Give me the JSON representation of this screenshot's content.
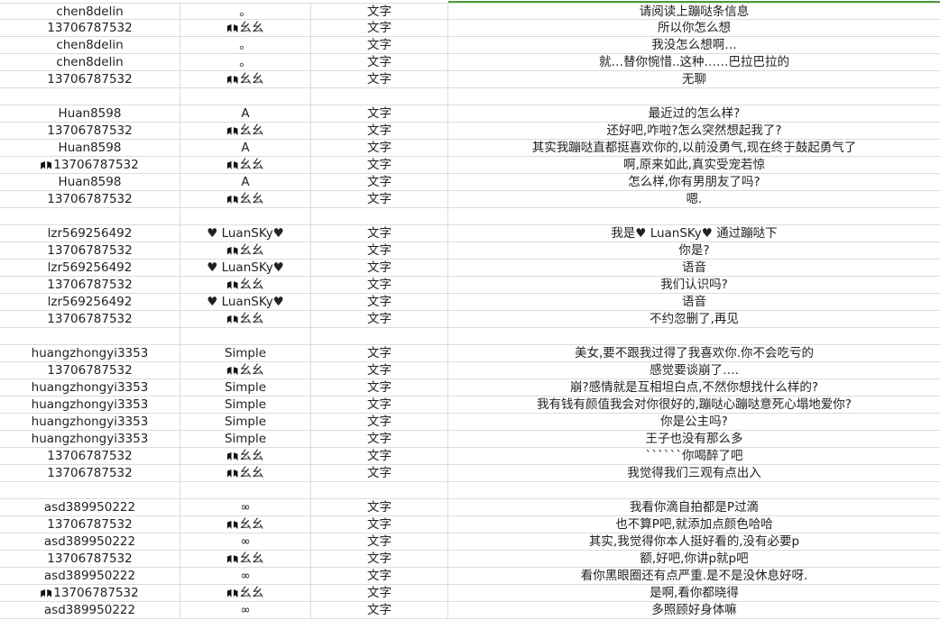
{
  "colors": {
    "selection_accent": "#4e9a3a",
    "grid": "#dcdcdc"
  },
  "glyph_icon": "emoji-glyph-icon",
  "rows": [
    {
      "sender": "chen8delin",
      "nick": "。",
      "type": "文字",
      "msg": "请阅读上蹦哒条信息"
    },
    {
      "sender": "13706787532",
      "nick": "幺幺",
      "nick_glyph": true,
      "type": "文字",
      "msg": "所以你怎么想"
    },
    {
      "sender": "chen8delin",
      "nick": "。",
      "type": "文字",
      "msg": "我没怎么想啊…"
    },
    {
      "sender": "chen8delin",
      "nick": "。",
      "type": "文字",
      "msg": "就…替你惋惜..这种……巴拉巴拉的"
    },
    {
      "sender": "13706787532",
      "nick": "幺幺",
      "nick_glyph": true,
      "type": "文字",
      "msg": "无聊"
    },
    {},
    {
      "sender": "Huan8598",
      "nick": "A",
      "type": "文字",
      "msg": "最近过的怎么样?"
    },
    {
      "sender": "13706787532",
      "nick": "幺幺",
      "nick_glyph": true,
      "type": "文字",
      "msg": "还好吧,咋啦?怎么突然想起我了?"
    },
    {
      "sender": "Huan8598",
      "nick": "A",
      "type": "文字",
      "msg": "其实我蹦哒直都挺喜欢你的,以前没勇气,现在终于鼓起勇气了"
    },
    {
      "sender": "13706787532",
      "sender_glyph": true,
      "nick": "幺幺",
      "nick_glyph": true,
      "type": "文字",
      "msg": "啊,原来如此,真实受宠若惊"
    },
    {
      "sender": "Huan8598",
      "nick": "A",
      "type": "文字",
      "msg": "怎么样,你有男朋友了吗?"
    },
    {
      "sender": "13706787532",
      "nick": "幺幺",
      "nick_glyph": true,
      "type": "文字",
      "msg": "嗯."
    },
    {},
    {
      "sender": "lzr569256492",
      "nick": "♥ LuanSKy♥",
      "type": "文字",
      "msg": "我是♥ LuanSKy♥ 通过蹦哒下"
    },
    {
      "sender": "13706787532",
      "nick": "幺幺",
      "nick_glyph": true,
      "type": "文字",
      "msg": "你是?"
    },
    {
      "sender": "lzr569256492",
      "nick": "♥ LuanSKy♥",
      "type": "文字",
      "msg": "语音"
    },
    {
      "sender": "13706787532",
      "nick": "幺幺",
      "nick_glyph": true,
      "type": "文字",
      "msg": "我们认识吗?"
    },
    {
      "sender": "lzr569256492",
      "nick": "♥ LuanSKy♥",
      "type": "文字",
      "msg": "语音"
    },
    {
      "sender": "13706787532",
      "nick": "幺幺",
      "nick_glyph": true,
      "type": "文字",
      "msg": "不约忽删了,再见"
    },
    {},
    {
      "sender": "huangzhongyi3353",
      "nick": "Simple",
      "type": "文字",
      "msg": "美女,要不跟我过得了我喜欢你.你不会吃亏的"
    },
    {
      "sender": "13706787532",
      "nick": "幺幺",
      "nick_glyph": true,
      "type": "文字",
      "msg": "感觉要谈崩了…."
    },
    {
      "sender": "huangzhongyi3353",
      "nick": "Simple",
      "type": "文字",
      "msg": "崩?感情就是互相坦白点,不然你想找什么样的?"
    },
    {
      "sender": "huangzhongyi3353",
      "nick": "Simple",
      "type": "文字",
      "msg": "我有钱有颜值我会对你很好的,蹦哒心蹦哒意死心塌地爱你?"
    },
    {
      "sender": "huangzhongyi3353",
      "nick": "Simple",
      "type": "文字",
      "msg": "你是公主吗?"
    },
    {
      "sender": "huangzhongyi3353",
      "nick": "Simple",
      "type": "文字",
      "msg": "王子也没有那么多"
    },
    {
      "sender": "13706787532",
      "nick": "幺幺",
      "nick_glyph": true,
      "type": "文字",
      "msg": "``````你喝醉了吧"
    },
    {
      "sender": "13706787532",
      "nick": "幺幺",
      "nick_glyph": true,
      "type": "文字",
      "msg": "我觉得我们三观有点出入"
    },
    {},
    {
      "sender": "asd389950222",
      "nick": "∞",
      "type": "文字",
      "msg": "我看你滴自拍都是P过滴"
    },
    {
      "sender": "13706787532",
      "nick": "幺幺",
      "nick_glyph": true,
      "type": "文字",
      "msg": "也不算P吧,就添加点颜色哈哈"
    },
    {
      "sender": "asd389950222",
      "nick": "∞",
      "type": "文字",
      "msg": "其实,我觉得你本人挺好看的,没有必要p"
    },
    {
      "sender": "13706787532",
      "nick": "幺幺",
      "nick_glyph": true,
      "type": "文字",
      "msg": "额,好吧,你讲p就p吧"
    },
    {
      "sender": "asd389950222",
      "nick": "∞",
      "type": "文字",
      "msg": "看你黑眼圈还有点严重.是不是没休息好呀."
    },
    {
      "sender": "13706787532",
      "sender_glyph": true,
      "nick": "幺幺",
      "nick_glyph": true,
      "type": "文字",
      "msg": "是啊,看你都晓得"
    },
    {
      "sender": "asd389950222",
      "nick": "∞",
      "type": "文字",
      "msg": "多照顾好身体嘛"
    }
  ]
}
